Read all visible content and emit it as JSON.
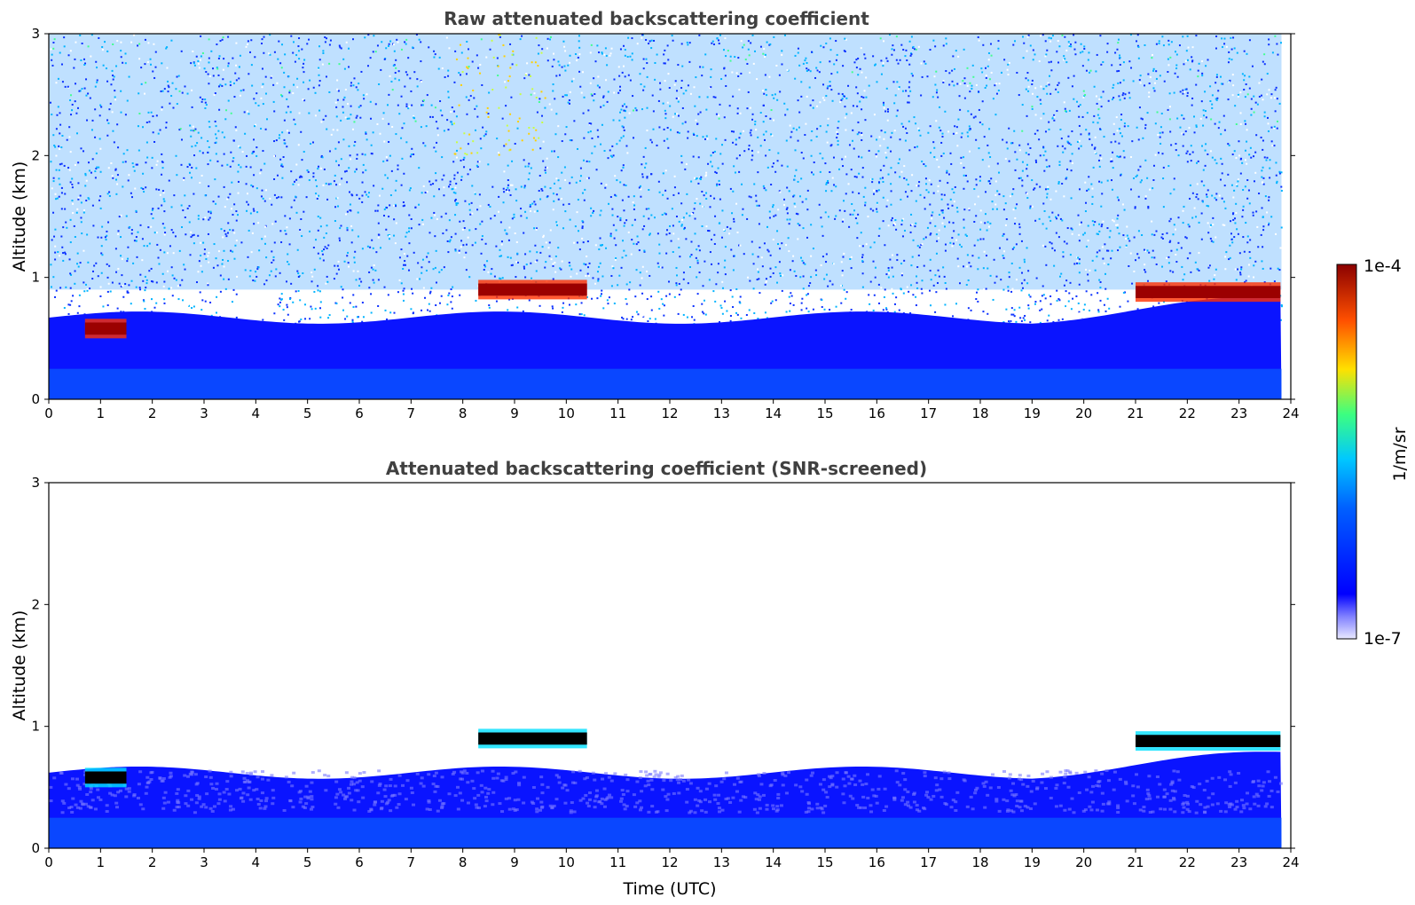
{
  "chart_data": [
    {
      "type": "heatmap",
      "title": "Raw attenuated backscattering coefficient",
      "xlabel": "",
      "ylabel": "Altitude (km)",
      "xlim": [
        0,
        24
      ],
      "ylim": [
        0,
        3
      ],
      "xticks": [
        "0",
        "1",
        "2",
        "3",
        "4",
        "5",
        "6",
        "7",
        "8",
        "9",
        "10",
        "11",
        "12",
        "13",
        "14",
        "15",
        "16",
        "17",
        "18",
        "19",
        "20",
        "21",
        "22",
        "23",
        "24"
      ],
      "yticks": [
        "0",
        "1",
        "2",
        "3"
      ],
      "features": [
        {
          "kind": "cloud_layer",
          "x": [
            0.7,
            1.5
          ],
          "altitude_km": 0.58
        },
        {
          "kind": "cloud_layer",
          "x": [
            8.3,
            10.4
          ],
          "altitude_km": 0.9
        },
        {
          "kind": "cloud_layer",
          "x": [
            21.0,
            23.8
          ],
          "altitude_km": 0.88
        },
        {
          "kind": "aerosol_layer_top",
          "x": [
            0,
            24
          ],
          "altitude_km": 0.6
        }
      ]
    },
    {
      "type": "heatmap",
      "title": "Attenuated backscattering coefficient (SNR-screened)",
      "xlabel": "Time (UTC)",
      "ylabel": "Altitude (km)",
      "xlim": [
        0,
        24
      ],
      "ylim": [
        0,
        3
      ],
      "xticks": [
        "0",
        "1",
        "2",
        "3",
        "4",
        "5",
        "6",
        "7",
        "8",
        "9",
        "10",
        "11",
        "12",
        "13",
        "14",
        "15",
        "16",
        "17",
        "18",
        "19",
        "20",
        "21",
        "22",
        "23",
        "24"
      ],
      "yticks": [
        "0",
        "1",
        "2",
        "3"
      ],
      "features": [
        {
          "kind": "cloud_layer",
          "x": [
            0.7,
            1.5
          ],
          "altitude_km": 0.58
        },
        {
          "kind": "cloud_layer",
          "x": [
            8.3,
            10.4
          ],
          "altitude_km": 0.9
        },
        {
          "kind": "cloud_layer",
          "x": [
            21.0,
            23.8
          ],
          "altitude_km": 0.88
        }
      ]
    }
  ],
  "colorbar": {
    "label": "1/m/sr",
    "max_label": "1e-4",
    "min_label": "1e-7",
    "colors": [
      "#e8e8ff",
      "#0000ff",
      "#00c8ff",
      "#3cff80",
      "#ffe000",
      "#ff5000",
      "#8b0000"
    ]
  }
}
